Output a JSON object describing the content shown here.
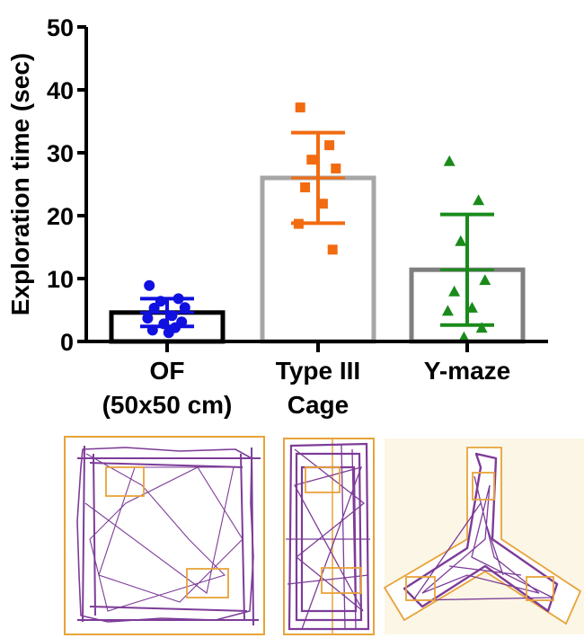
{
  "chart_data": {
    "type": "bar",
    "ylabel": "Exploration time (sec)",
    "ylim": [
      0,
      50
    ],
    "yticks": [
      0,
      10,
      20,
      30,
      40,
      50
    ],
    "categories": [
      {
        "lines": [
          "OF",
          "(50x50 cm)"
        ]
      },
      {
        "lines": [
          "Type III",
          "Cage"
        ]
      },
      {
        "lines": [
          "Y-maze"
        ]
      }
    ],
    "series": [
      {
        "values": [
          4.6,
          26.0,
          11.4
        ],
        "sd": [
          2.2,
          7.2,
          8.8
        ],
        "bar_colors": [
          "#000000",
          "#a6a6a6",
          "#7f7f7f"
        ],
        "point_colors": [
          "#1010e0",
          "#f26b11",
          "#1a8a1a"
        ],
        "markers": [
          "circle",
          "square",
          "triangle"
        ],
        "points": [
          [
            8.9,
            6.8,
            6.4,
            5.4,
            5.3,
            4.1,
            3.7,
            3.1,
            2.8,
            2.2,
            1.8,
            1.4
          ],
          [
            37.2,
            31.2,
            28.9,
            27.5,
            24.5,
            21.9,
            18.7,
            14.6
          ],
          [
            28.6,
            22.4,
            15.9,
            9.7,
            7.9,
            5.3,
            4.8,
            2.1,
            0.6
          ]
        ]
      }
    ]
  },
  "thumbnails": [
    {
      "name": "open-field-track"
    },
    {
      "name": "type-iii-cage-track"
    },
    {
      "name": "y-maze-track"
    }
  ]
}
